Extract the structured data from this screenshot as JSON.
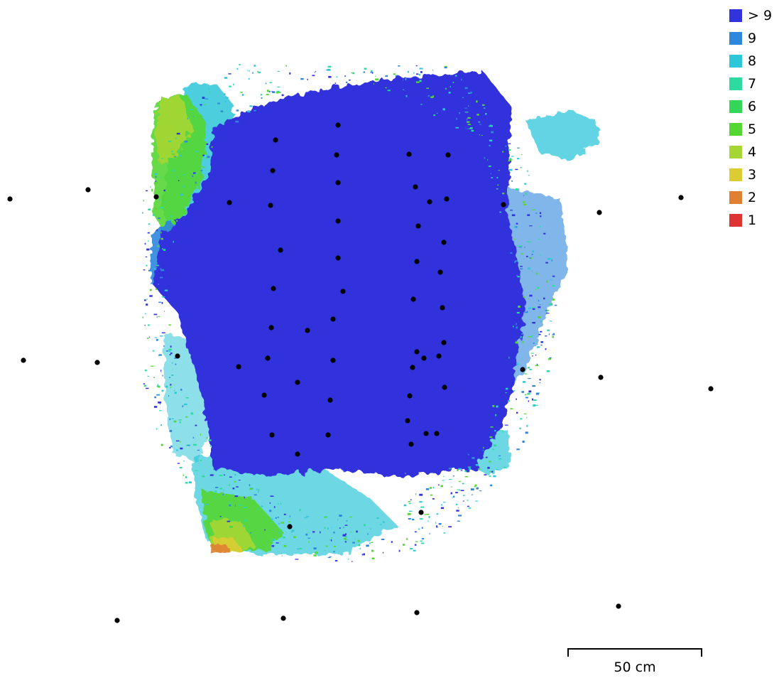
{
  "legend": {
    "items": [
      {
        "label": "> 9",
        "color": "#3333dd"
      },
      {
        "label": "9",
        "color": "#2f86dd"
      },
      {
        "label": "8",
        "color": "#2ec6d9"
      },
      {
        "label": "7",
        "color": "#2ddba0"
      },
      {
        "label": "6",
        "color": "#33d659"
      },
      {
        "label": "5",
        "color": "#55d633"
      },
      {
        "label": "4",
        "color": "#a6d633"
      },
      {
        "label": "3",
        "color": "#dccc33"
      },
      {
        "label": "2",
        "color": "#e08033"
      },
      {
        "label": "1",
        "color": "#dd3333"
      }
    ]
  },
  "scale_bar": {
    "label": "50 cm"
  },
  "camera_marker_color": "#000000"
}
